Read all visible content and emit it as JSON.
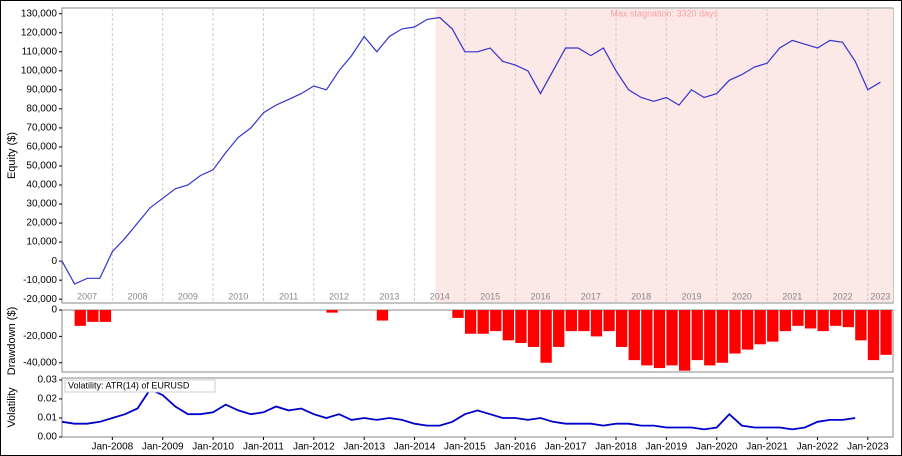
{
  "chart_data": [
    {
      "type": "line",
      "ylabel": "Equity ($)",
      "annotation": "Max stagnation: 3320 days",
      "stagnation_span": [
        "2014-06",
        "2023-07"
      ],
      "grid": true,
      "x": [
        "2007-01",
        "2007-04",
        "2007-07",
        "2007-10",
        "2008-01",
        "2008-04",
        "2008-07",
        "2008-10",
        "2009-01",
        "2009-04",
        "2009-07",
        "2009-10",
        "2010-01",
        "2010-04",
        "2010-07",
        "2010-10",
        "2011-01",
        "2011-04",
        "2011-07",
        "2011-10",
        "2012-01",
        "2012-04",
        "2012-07",
        "2012-10",
        "2013-01",
        "2013-04",
        "2013-07",
        "2013-10",
        "2014-01",
        "2014-04",
        "2014-07",
        "2014-10",
        "2015-01",
        "2015-04",
        "2015-07",
        "2015-10",
        "2016-01",
        "2016-04",
        "2016-07",
        "2016-10",
        "2017-01",
        "2017-04",
        "2017-07",
        "2017-10",
        "2018-01",
        "2018-04",
        "2018-07",
        "2018-10",
        "2019-01",
        "2019-04",
        "2019-07",
        "2019-10",
        "2020-01",
        "2020-04",
        "2020-07",
        "2020-10",
        "2021-01",
        "2021-04",
        "2021-07",
        "2021-10",
        "2022-01",
        "2022-04",
        "2022-07",
        "2022-10",
        "2023-01",
        "2023-04"
      ],
      "series": [
        {
          "name": "Equity",
          "color": "#3333cc",
          "values": [
            0,
            -12000,
            -9000,
            -9000,
            5000,
            12000,
            20000,
            28000,
            33000,
            38000,
            40000,
            45000,
            48000,
            57000,
            65000,
            70000,
            78000,
            82000,
            85000,
            88000,
            92000,
            90000,
            100000,
            108000,
            118000,
            110000,
            118000,
            122000,
            123000,
            127000,
            128000,
            122000,
            110000,
            110000,
            112000,
            105000,
            103000,
            100000,
            88000,
            100000,
            112000,
            112000,
            108000,
            112000,
            100000,
            90000,
            86000,
            84000,
            86000,
            82000,
            90000,
            86000,
            88000,
            95000,
            98000,
            102000,
            104000,
            112000,
            116000,
            114000,
            112000,
            116000,
            115000,
            105000,
            90000,
            94000
          ]
        }
      ],
      "xlim": [
        "2007-01",
        "2023-07"
      ],
      "ylim": [
        -22000,
        133000
      ],
      "xticks": [
        {
          "value": "2007-07",
          "label": "2007"
        },
        {
          "value": "2008-07",
          "label": "2008"
        },
        {
          "value": "2009-07",
          "label": "2009"
        },
        {
          "value": "2010-07",
          "label": "2010"
        },
        {
          "value": "2011-07",
          "label": "2011"
        },
        {
          "value": "2012-07",
          "label": "2012"
        },
        {
          "value": "2013-07",
          "label": "2013"
        },
        {
          "value": "2014-07",
          "label": "2014"
        },
        {
          "value": "2015-07",
          "label": "2015"
        },
        {
          "value": "2016-07",
          "label": "2016"
        },
        {
          "value": "2017-07",
          "label": "2017"
        },
        {
          "value": "2018-07",
          "label": "2018"
        },
        {
          "value": "2019-07",
          "label": "2019"
        },
        {
          "value": "2020-07",
          "label": "2020"
        },
        {
          "value": "2021-07",
          "label": "2021"
        },
        {
          "value": "2022-07",
          "label": "2022"
        },
        {
          "value": "2023-04",
          "label": "2023"
        }
      ],
      "yticks": [
        {
          "value": -20000,
          "label": "-20,000"
        },
        {
          "value": -10000,
          "label": "-10,000"
        },
        0,
        {
          "value": 10000,
          "label": "10,000"
        },
        {
          "value": 20000,
          "label": "20,000"
        },
        {
          "value": 30000,
          "label": "30,000"
        },
        {
          "value": 40000,
          "label": "40,000"
        },
        {
          "value": 50000,
          "label": "50,000"
        },
        {
          "value": 60000,
          "label": "60,000"
        },
        {
          "value": 70000,
          "label": "70,000"
        },
        {
          "value": 80000,
          "label": "80,000"
        },
        {
          "value": 90000,
          "label": "90,000"
        },
        {
          "value": 100000,
          "label": "100,000"
        },
        {
          "value": 110000,
          "label": "110,000"
        },
        {
          "value": 120000,
          "label": "120,000"
        },
        {
          "value": 130000,
          "label": "130,000"
        }
      ]
    },
    {
      "type": "bar",
      "ylabel": "Drawdown ($)",
      "x": [
        "2007-01",
        "2007-04",
        "2007-07",
        "2007-10",
        "2008-01",
        "2008-04",
        "2008-07",
        "2008-10",
        "2009-01",
        "2009-04",
        "2009-07",
        "2009-10",
        "2010-01",
        "2010-04",
        "2010-07",
        "2010-10",
        "2011-01",
        "2011-04",
        "2011-07",
        "2011-10",
        "2012-01",
        "2012-04",
        "2012-07",
        "2012-10",
        "2013-01",
        "2013-04",
        "2013-07",
        "2013-10",
        "2014-01",
        "2014-04",
        "2014-07",
        "2014-10",
        "2015-01",
        "2015-04",
        "2015-07",
        "2015-10",
        "2016-01",
        "2016-04",
        "2016-07",
        "2016-10",
        "2017-01",
        "2017-04",
        "2017-07",
        "2017-10",
        "2018-01",
        "2018-04",
        "2018-07",
        "2018-10",
        "2019-01",
        "2019-04",
        "2019-07",
        "2019-10",
        "2020-01",
        "2020-04",
        "2020-07",
        "2020-10",
        "2021-01",
        "2021-04",
        "2021-07",
        "2021-10",
        "2022-01",
        "2022-04",
        "2022-07",
        "2022-10",
        "2023-01",
        "2023-04"
      ],
      "series": [
        {
          "name": "Drawdown",
          "color": "#ff0000",
          "values": [
            0,
            -12000,
            -9000,
            -9000,
            0,
            0,
            0,
            0,
            0,
            0,
            0,
            0,
            0,
            0,
            0,
            0,
            0,
            0,
            0,
            0,
            0,
            -2000,
            0,
            0,
            0,
            -8000,
            0,
            0,
            0,
            0,
            0,
            -6000,
            -18000,
            -18000,
            -16000,
            -23000,
            -25000,
            -28000,
            -40000,
            -28000,
            -16000,
            -16000,
            -20000,
            -16000,
            -28000,
            -38000,
            -42000,
            -44000,
            -42000,
            -46000,
            -38000,
            -42000,
            -40000,
            -33000,
            -30000,
            -26000,
            -24000,
            -16000,
            -12000,
            -14000,
            -16000,
            -12000,
            -13000,
            -23000,
            -38000,
            -34000
          ]
        }
      ],
      "xlim": [
        "2007-01",
        "2023-07"
      ],
      "ylim": [
        -47000,
        0
      ],
      "yticks": [
        {
          "value": -40000,
          "label": "-40,000"
        },
        {
          "value": -20000,
          "label": "-20,000"
        },
        0
      ]
    },
    {
      "type": "line",
      "ylabel": "Volatility",
      "x": [
        "2007-01",
        "2007-04",
        "2007-07",
        "2007-10",
        "2008-01",
        "2008-04",
        "2008-07",
        "2008-10",
        "2009-01",
        "2009-04",
        "2009-07",
        "2009-10",
        "2010-01",
        "2010-04",
        "2010-07",
        "2010-10",
        "2011-01",
        "2011-04",
        "2011-07",
        "2011-10",
        "2012-01",
        "2012-04",
        "2012-07",
        "2012-10",
        "2013-01",
        "2013-04",
        "2013-07",
        "2013-10",
        "2014-01",
        "2014-04",
        "2014-07",
        "2014-10",
        "2015-01",
        "2015-04",
        "2015-07",
        "2015-10",
        "2016-01",
        "2016-04",
        "2016-07",
        "2016-10",
        "2017-01",
        "2017-04",
        "2017-07",
        "2017-10",
        "2018-01",
        "2018-04",
        "2018-07",
        "2018-10",
        "2019-01",
        "2019-04",
        "2019-07",
        "2019-10",
        "2020-01",
        "2020-04",
        "2020-07",
        "2020-10",
        "2021-01",
        "2021-04",
        "2021-07",
        "2021-10",
        "2022-01",
        "2022-04",
        "2022-07",
        "2022-10",
        "2023-01",
        "2023-04"
      ],
      "series": [
        {
          "name": "Volatility: ATR(14) of EURUSD",
          "color": "#0000cc",
          "values": [
            0.008,
            0.007,
            0.007,
            0.008,
            0.01,
            0.012,
            0.015,
            0.025,
            0.022,
            0.016,
            0.012,
            0.012,
            0.013,
            0.017,
            0.014,
            0.012,
            0.013,
            0.016,
            0.014,
            0.015,
            0.012,
            0.01,
            0.012,
            0.009,
            0.01,
            0.009,
            0.01,
            0.009,
            0.007,
            0.006,
            0.006,
            0.008,
            0.012,
            0.014,
            0.012,
            0.01,
            0.01,
            0.009,
            0.01,
            0.008,
            0.007,
            0.007,
            0.007,
            0.006,
            0.007,
            0.007,
            0.006,
            0.006,
            0.005,
            0.005,
            0.005,
            0.004,
            0.005,
            0.012,
            0.006,
            0.005,
            0.005,
            0.005,
            0.004,
            0.005,
            0.008,
            0.009,
            0.009,
            0.01,
            null,
            null
          ]
        }
      ],
      "xlim": [
        "2007-01",
        "2023-07"
      ],
      "ylim": [
        0,
        0.031
      ],
      "xticks": [
        {
          "value": "2008-01",
          "label": "Jan-2008"
        },
        {
          "value": "2009-01",
          "label": "Jan-2009"
        },
        {
          "value": "2010-01",
          "label": "Jan-2010"
        },
        {
          "value": "2011-01",
          "label": "Jan-2011"
        },
        {
          "value": "2012-01",
          "label": "Jan-2012"
        },
        {
          "value": "2013-01",
          "label": "Jan-2013"
        },
        {
          "value": "2014-01",
          "label": "Jan-2014"
        },
        {
          "value": "2015-01",
          "label": "Jan-2015"
        },
        {
          "value": "2016-01",
          "label": "Jan-2016"
        },
        {
          "value": "2017-01",
          "label": "Jan-2017"
        },
        {
          "value": "2018-01",
          "label": "Jan-2018"
        },
        {
          "value": "2019-01",
          "label": "Jan-2019"
        },
        {
          "value": "2020-01",
          "label": "Jan-2020"
        },
        {
          "value": "2021-01",
          "label": "Jan-2021"
        },
        {
          "value": "2022-01",
          "label": "Jan-2022"
        },
        {
          "value": "2023-01",
          "label": "Jan-2023"
        }
      ],
      "yticks": [
        {
          "value": 0,
          "label": "0.00"
        },
        0.01,
        0.02,
        0.03
      ]
    }
  ]
}
